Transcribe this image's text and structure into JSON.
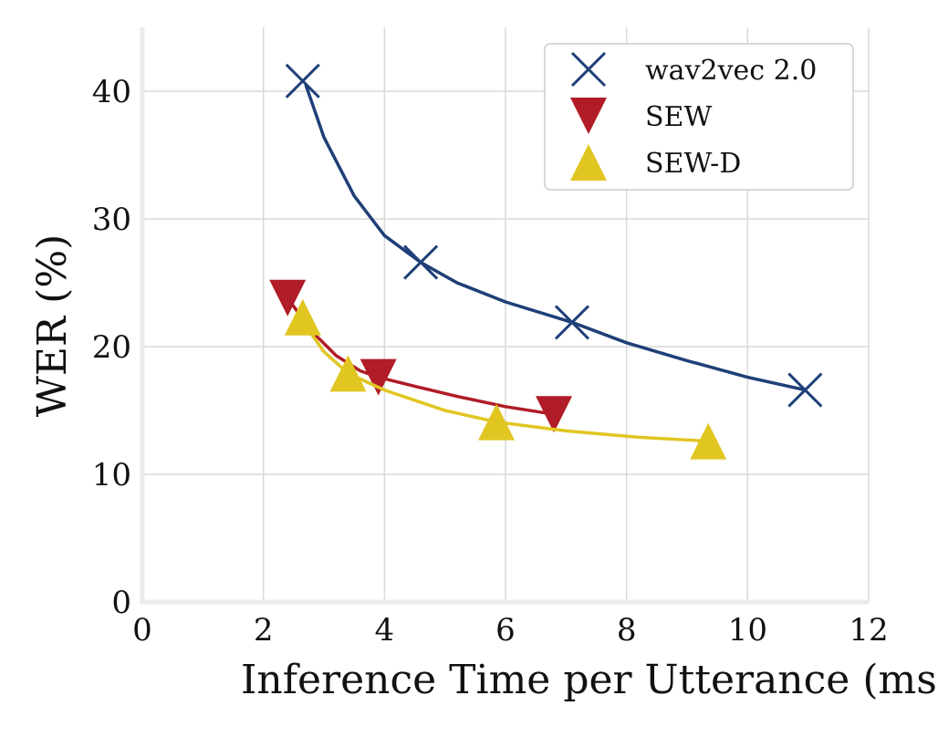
{
  "chart_data": {
    "type": "line",
    "xlabel": "Inference Time per Utterance (ms)",
    "ylabel": "WER (%)",
    "xlim": [
      0,
      12
    ],
    "ylim": [
      0,
      45
    ],
    "xticks": [
      0,
      2,
      4,
      6,
      8,
      10,
      12
    ],
    "yticks": [
      0,
      10,
      20,
      30,
      40
    ],
    "grid": true,
    "legend_position": "top-right",
    "series": [
      {
        "name": "wav2vec 2.0",
        "marker": "x",
        "color": "#1f3f77",
        "points": [
          [
            2.65,
            40.8
          ],
          [
            4.6,
            26.6
          ],
          [
            7.1,
            21.9
          ],
          [
            10.95,
            16.6
          ]
        ],
        "curve": [
          [
            2.7,
            40.5
          ],
          [
            3.0,
            36.4
          ],
          [
            3.5,
            31.8
          ],
          [
            4.0,
            28.7
          ],
          [
            4.6,
            26.6
          ],
          [
            5.2,
            25.0
          ],
          [
            6.0,
            23.5
          ],
          [
            7.1,
            21.9
          ],
          [
            8.0,
            20.3
          ],
          [
            9.0,
            18.9
          ],
          [
            10.0,
            17.6
          ],
          [
            10.95,
            16.6
          ]
        ]
      },
      {
        "name": "SEW",
        "marker": "triangle-down",
        "color": "#b01c27",
        "points": [
          [
            2.4,
            23.8
          ],
          [
            3.9,
            17.6
          ],
          [
            6.8,
            14.7
          ]
        ],
        "curve": [
          [
            2.4,
            23.8
          ],
          [
            2.8,
            21.2
          ],
          [
            3.2,
            19.3
          ],
          [
            3.6,
            18.1
          ],
          [
            3.9,
            17.6
          ],
          [
            4.5,
            16.9
          ],
          [
            5.2,
            16.1
          ],
          [
            6.0,
            15.3
          ],
          [
            6.8,
            14.7
          ]
        ]
      },
      {
        "name": "SEW-D",
        "marker": "triangle-up",
        "color": "#e1c622",
        "points": [
          [
            2.65,
            22.3
          ],
          [
            3.4,
            17.9
          ],
          [
            5.85,
            14.1
          ],
          [
            9.35,
            12.6
          ]
        ],
        "curve": [
          [
            2.6,
            22.3
          ],
          [
            3.0,
            19.6
          ],
          [
            3.4,
            17.9
          ],
          [
            4.0,
            16.6
          ],
          [
            5.0,
            15.0
          ],
          [
            5.85,
            14.1
          ],
          [
            7.0,
            13.4
          ],
          [
            8.2,
            12.9
          ],
          [
            9.35,
            12.6
          ]
        ]
      }
    ]
  }
}
